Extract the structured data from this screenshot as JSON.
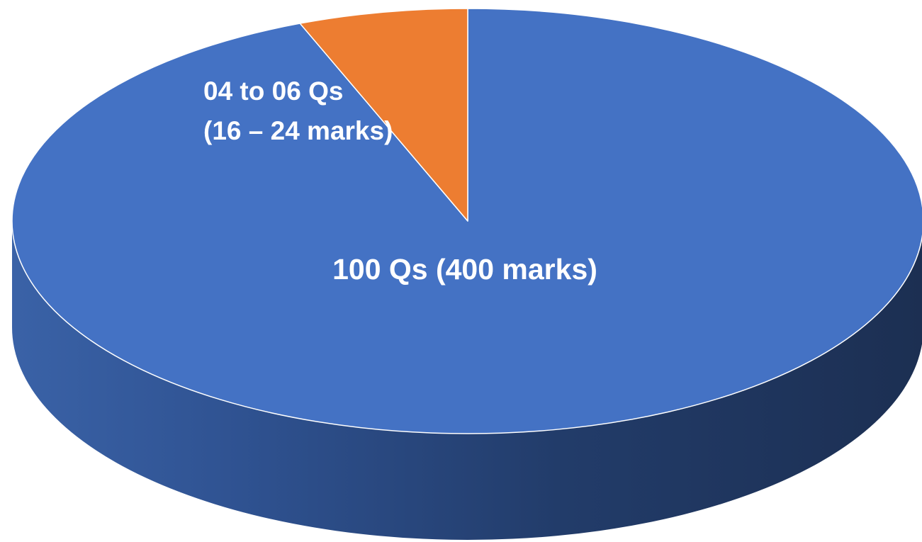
{
  "chart_data": {
    "type": "pie",
    "style": "3d",
    "slices": [
      {
        "label_lines": [
          "100 Qs (400 marks)"
        ],
        "value": 94,
        "color": "#4472C4",
        "side_color": "#26406E",
        "label_color": "#FFFFFF"
      },
      {
        "label_lines": [
          "04 to 06 Qs",
          "(16 – 24 marks)"
        ],
        "value": 6,
        "color": "#ED7D31",
        "side_color": "#A85A22",
        "label_color": "#FFFFFF"
      }
    ],
    "legend": "none"
  }
}
